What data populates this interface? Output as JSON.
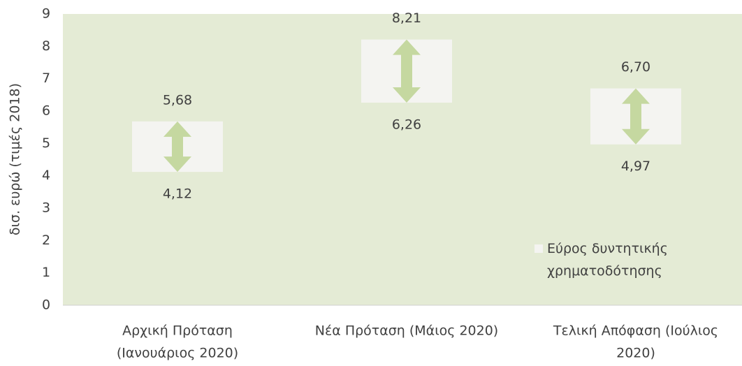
{
  "chart_data": {
    "type": "range_bar",
    "y_label": "δισ. ευρώ (τιμές 2018)",
    "categories": [
      [
        "Αρχική Πρόταση",
        "(Ιανουάριος 2020)"
      ],
      [
        "Νέα Πρόταση (Μάιος 2020)"
      ],
      [
        "Τελική Απόφαση (Ιούλιος",
        "2020)"
      ]
    ],
    "series": [
      {
        "name": "Εύρος δυντητικής χρηματοδότησης",
        "color": "#f4f4f1",
        "arrow_color": "#c5d8a0",
        "low": [
          4.12,
          6.26,
          4.97
        ],
        "low_labels": [
          "4,12",
          "6,26",
          "4,97"
        ],
        "high": [
          5.68,
          8.21,
          6.7
        ],
        "high_labels": [
          "5,68",
          "8,21",
          "6,70"
        ]
      }
    ],
    "ylim": [
      0,
      9
    ],
    "yticks": [
      0,
      1,
      2,
      3,
      4,
      5,
      6,
      7,
      8,
      9
    ],
    "plot_background": "#e4ebd5"
  }
}
